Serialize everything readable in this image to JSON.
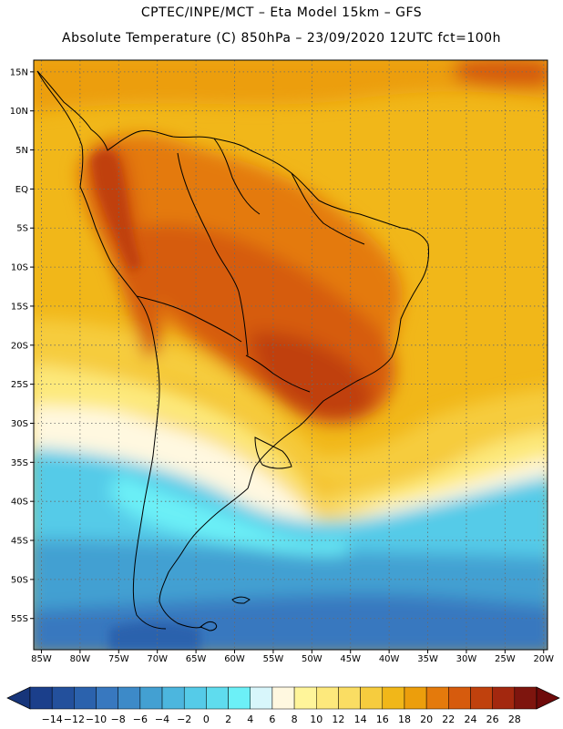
{
  "header": {
    "line1": "CPTEC/INPE/MCT –  Eta Model 15km – GFS",
    "line2": "Absolute Temperature (C) 850hPa – 23/09/2020 12UTC fct=100h"
  },
  "map": {
    "lon_range": [
      -86,
      -19.5
    ],
    "lat_range": [
      -59,
      16.5
    ],
    "lat_ticks": [
      "15N",
      "10N",
      "5N",
      "EQ",
      "5S",
      "10S",
      "15S",
      "20S",
      "25S",
      "30S",
      "35S",
      "40S",
      "45S",
      "50S",
      "55S"
    ],
    "lon_ticks": [
      "85W",
      "80W",
      "75W",
      "70W",
      "65W",
      "60W",
      "55W",
      "50W",
      "45W",
      "40W",
      "35W",
      "30W",
      "25W",
      "20W"
    ],
    "grid": true
  },
  "colorbar": {
    "labels": [
      "-14",
      "-12",
      "-10",
      "-8",
      "-6",
      "-4",
      "-2",
      "0",
      "2",
      "4",
      "6",
      "8",
      "10",
      "12",
      "14",
      "16",
      "18",
      "20",
      "22",
      "24",
      "26",
      "28"
    ],
    "colors": [
      "#1b3f8b",
      "#23509c",
      "#2b62ad",
      "#3878bf",
      "#3d8ac8",
      "#43a0d2",
      "#4cb6de",
      "#55cbe8",
      "#5fdcee",
      "#6cf0f7",
      "#d8f6fb",
      "#fff8e0",
      "#fff59a",
      "#fde97c",
      "#fadd63",
      "#f6cc3e",
      "#f1b719",
      "#ec9e0c",
      "#e47a0c",
      "#d65b0d",
      "#c0410d",
      "#a3280f",
      "#7e150e"
    ],
    "arrow_low": "#17357a",
    "arrow_high": "#6e0a0a"
  },
  "colors": {
    "ocean_warm": "#f1b719",
    "ocean_warm_north": "#ec9e0c",
    "tropics_land": "#e47a0c",
    "hot_core": "#d65b0d",
    "hot_peak": "#c0410d",
    "subtropic": "#f6cc3e",
    "cool_yellow": "#fde97c",
    "front_pale": "#fff8e0",
    "cyan_light": "#6cf0f7",
    "cyan": "#55cbe8",
    "cyan_mid": "#4cb6de",
    "blue_mid": "#43a0d2",
    "blue": "#3878bf",
    "blue_deep": "#2b62ad"
  }
}
